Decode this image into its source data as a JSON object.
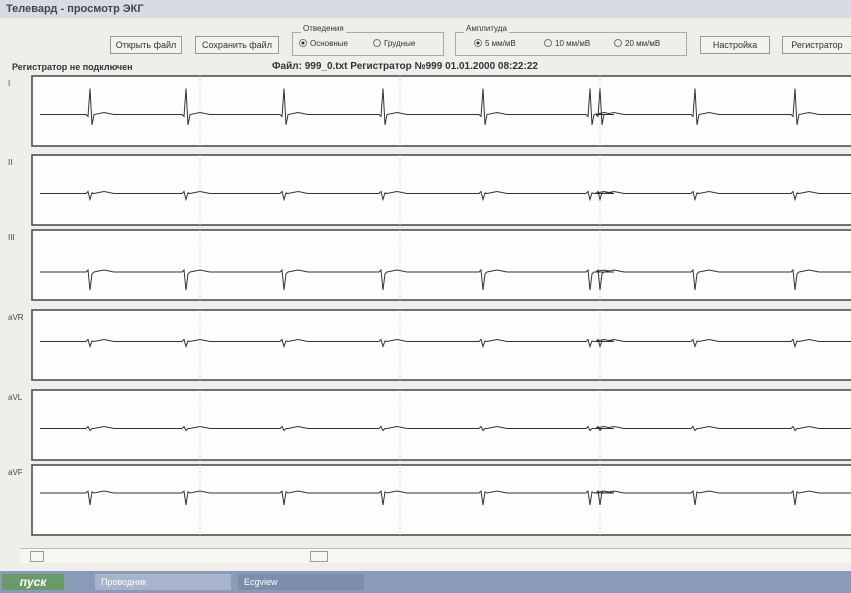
{
  "window": {
    "title": "Телевард - просмотр ЭКГ"
  },
  "toolbar": {
    "open": "Открыть файл",
    "save": "Сохранить файл",
    "leads_group": {
      "title": "Отведения",
      "options": [
        "Основные",
        "Грудные"
      ]
    },
    "amp_group": {
      "title": "Амплитуда",
      "options": [
        "5 мм/мВ",
        "10 мм/мВ",
        "20 мм/мВ"
      ]
    },
    "settings": "Настройка",
    "recorder": "Регистратор"
  },
  "status": {
    "left": "Регистратор не подключен",
    "file": "Файл: 999_0.txt  Регистратор №999  01.01.2000 08:22:22"
  },
  "leads": [
    "I",
    "II",
    "III",
    "aVR",
    "aVL",
    "aVF"
  ],
  "taskbar": {
    "start": "пуск",
    "items": [
      "Проводник",
      "Ecgview"
    ]
  }
}
